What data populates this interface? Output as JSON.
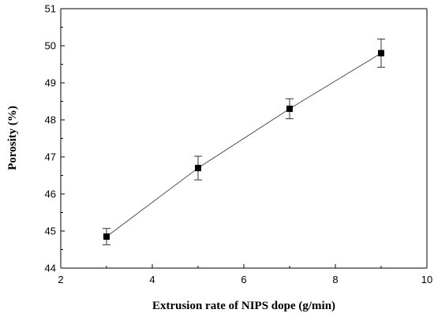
{
  "chart_data": {
    "type": "line",
    "title": "",
    "xlabel": "Extrusion rate of NIPS dope (g/min)",
    "ylabel": "Porosity (%)",
    "xlim": [
      2,
      10
    ],
    "ylim": [
      44,
      51
    ],
    "x_ticks": [
      2,
      4,
      6,
      8,
      10
    ],
    "y_ticks": [
      44,
      45,
      46,
      47,
      48,
      49,
      50,
      51
    ],
    "x_tick_labels": [
      "2",
      "4",
      "6",
      "8",
      "10"
    ],
    "y_tick_labels": [
      "44",
      "45",
      "46",
      "47",
      "48",
      "49",
      "50",
      "51"
    ],
    "legend": "none",
    "grid": false,
    "marker": "square",
    "series": [
      {
        "x": [
          3,
          5,
          7,
          9
        ],
        "y": [
          44.85,
          46.7,
          48.3,
          49.8
        ],
        "error": [
          0.22,
          0.32,
          0.27,
          0.38
        ],
        "color": "#000000",
        "line_color": "#555555"
      }
    ]
  }
}
